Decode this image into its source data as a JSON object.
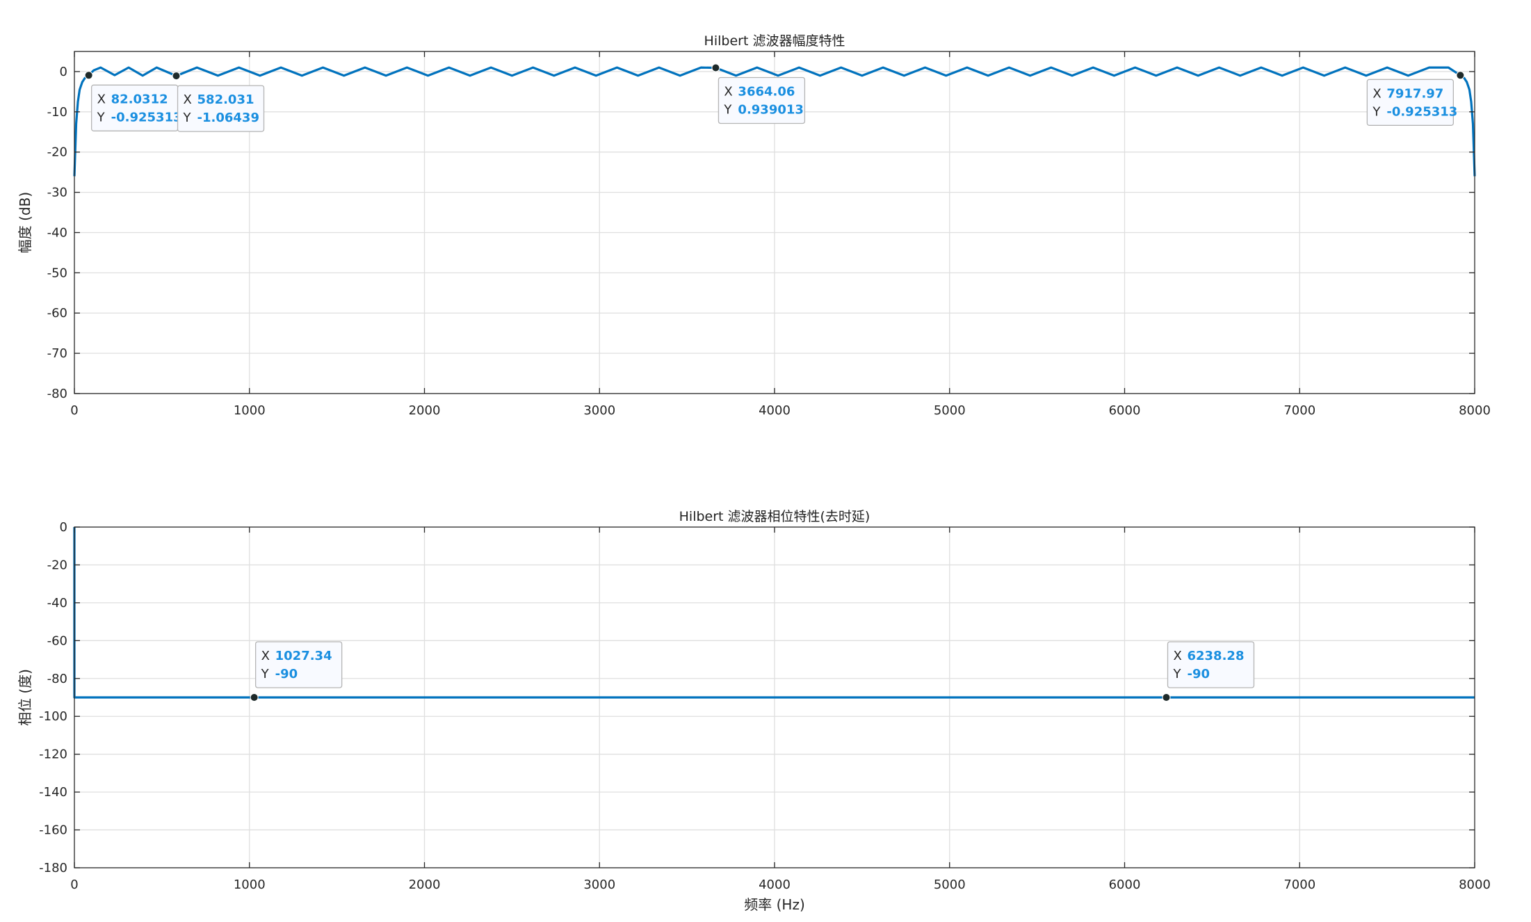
{
  "chart_data": [
    {
      "type": "line",
      "title": "Hilbert 滤波器幅度特性",
      "xlabel": "",
      "ylabel": "幅度 (dB)",
      "xlim": [
        0,
        8000
      ],
      "ylim": [
        -80,
        5
      ],
      "xticks": [
        0,
        1000,
        2000,
        3000,
        4000,
        5000,
        6000,
        7000,
        8000
      ],
      "yticks": [
        0,
        -10,
        -20,
        -30,
        -40,
        -50,
        -60,
        -70,
        -80
      ],
      "grid": true,
      "series_color": "#0072bd",
      "series": [
        {
          "x": [
            0,
            10,
            20,
            30,
            45,
            60,
            82.0312,
            110,
            150,
            230,
            310,
            390,
            470,
            582.031,
            700,
            820,
            940,
            1060,
            1180,
            1300,
            1420,
            1540,
            1660,
            1780,
            1900,
            2020,
            2140,
            2260,
            2380,
            2500,
            2620,
            2740,
            2860,
            2980,
            3100,
            3220,
            3340,
            3460,
            3580,
            3664.06,
            3780,
            3900,
            4020,
            4140,
            4260,
            4380,
            4500,
            4620,
            4740,
            4860,
            4980,
            5100,
            5220,
            5340,
            5460,
            5580,
            5700,
            5820,
            5940,
            6060,
            6180,
            6300,
            6420,
            6540,
            6660,
            6780,
            6900,
            7020,
            7140,
            7260,
            7380,
            7500,
            7620,
            7740,
            7850,
            7917.97,
            7940,
            7955,
            7970,
            7980,
            7990,
            8000
          ],
          "y": [
            -26,
            -13,
            -7.5,
            -4.5,
            -2.6,
            -1.6,
            -0.925313,
            0.3,
            1.0,
            -0.9,
            1.0,
            -1.0,
            1.0,
            -1.06439,
            1.0,
            -1.0,
            1.0,
            -1.0,
            1.0,
            -1.0,
            1.0,
            -1.0,
            1.0,
            -1.0,
            1.0,
            -1.0,
            1.0,
            -1.0,
            1.0,
            -1.0,
            1.0,
            -1.0,
            1.0,
            -1.0,
            1.0,
            -1.0,
            1.0,
            -1.0,
            1.0,
            0.939013,
            -1.0,
            1.0,
            -1.0,
            1.0,
            -1.0,
            1.0,
            -1.0,
            1.0,
            -1.0,
            1.0,
            -1.0,
            1.0,
            -1.0,
            1.0,
            -1.0,
            1.0,
            -1.0,
            1.0,
            -1.0,
            1.0,
            -1.0,
            1.0,
            -1.0,
            1.0,
            -1.0,
            1.0,
            -1.0,
            1.0,
            -1.0,
            1.0,
            -1.0,
            1.0,
            -1.0,
            1.0,
            1.0,
            -0.925313,
            -1.6,
            -2.6,
            -4.5,
            -7.5,
            -13,
            -26
          ]
        }
      ],
      "datatips": [
        {
          "x": "82.0312",
          "y": "-0.925313",
          "xval": 82.0312,
          "yval": -0.925313
        },
        {
          "x": "582.031",
          "y": "-1.06439",
          "xval": 582.031,
          "yval": -1.06439
        },
        {
          "x": "3664.06",
          "y": "0.939013",
          "xval": 3664.06,
          "yval": 0.939013
        },
        {
          "x": "7917.97",
          "y": "-0.925313",
          "xval": 7917.97,
          "yval": -0.925313
        }
      ]
    },
    {
      "type": "line",
      "title": "Hilbert 滤波器相位特性(去时延)",
      "xlabel": "频率 (Hz)",
      "ylabel": "相位 (度)",
      "xlim": [
        0,
        8000
      ],
      "ylim": [
        -180,
        0
      ],
      "xticks": [
        0,
        1000,
        2000,
        3000,
        4000,
        5000,
        6000,
        7000,
        8000
      ],
      "yticks": [
        0,
        -20,
        -40,
        -60,
        -80,
        -100,
        -120,
        -140,
        -160,
        -180
      ],
      "grid": true,
      "series_color": "#0072bd",
      "series": [
        {
          "x": [
            0,
            0,
            4,
            8000
          ],
          "y": [
            0,
            -90,
            -90,
            -90
          ]
        }
      ],
      "datatips": [
        {
          "x": "1027.34",
          "y": "-90",
          "xval": 1027.34,
          "yval": -90
        },
        {
          "x": "6238.28",
          "y": "-90",
          "xval": 6238.28,
          "yval": -90
        }
      ]
    }
  ]
}
